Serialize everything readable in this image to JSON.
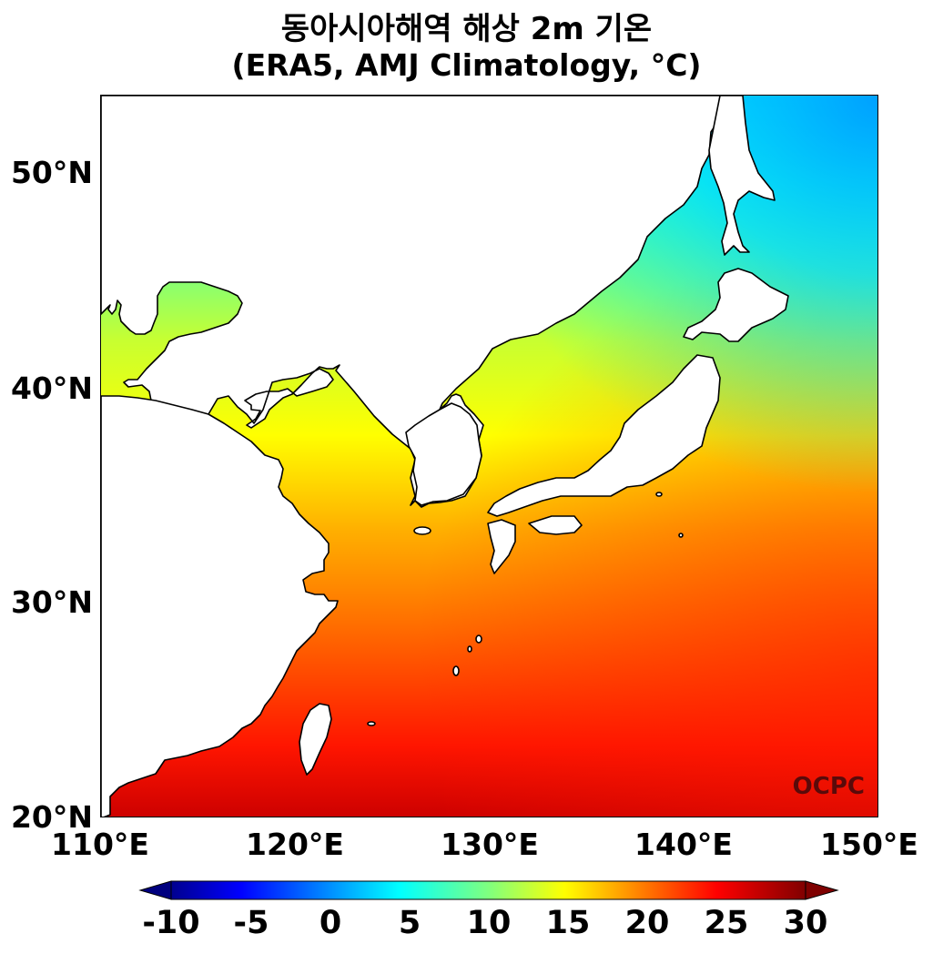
{
  "title": {
    "line1": "동아시아해역 해상 2m 기온",
    "line2": "(ERA5, AMJ Climatology, °C)"
  },
  "map": {
    "lon_range": [
      110,
      150
    ],
    "lat_range": [
      20,
      53.5
    ],
    "y_ticks": [
      "20°N",
      "30°N",
      "40°N",
      "50°N"
    ],
    "x_ticks": [
      "110°E",
      "120°E",
      "130°E",
      "140°E",
      "150°E"
    ],
    "watermark": "OCPC",
    "land_color": "#ffffff",
    "coastline_color": "#000000"
  },
  "colorbar": {
    "colormap": "jet",
    "range": [
      -10,
      30
    ],
    "ticks": [
      "-10",
      "-5",
      "0",
      "5",
      "10",
      "15",
      "20",
      "25",
      "30"
    ],
    "extend": "both"
  },
  "field": {
    "variable": "2m air temperature over sea",
    "gradient": "warm south (~27) to cold north-east (~2)"
  }
}
